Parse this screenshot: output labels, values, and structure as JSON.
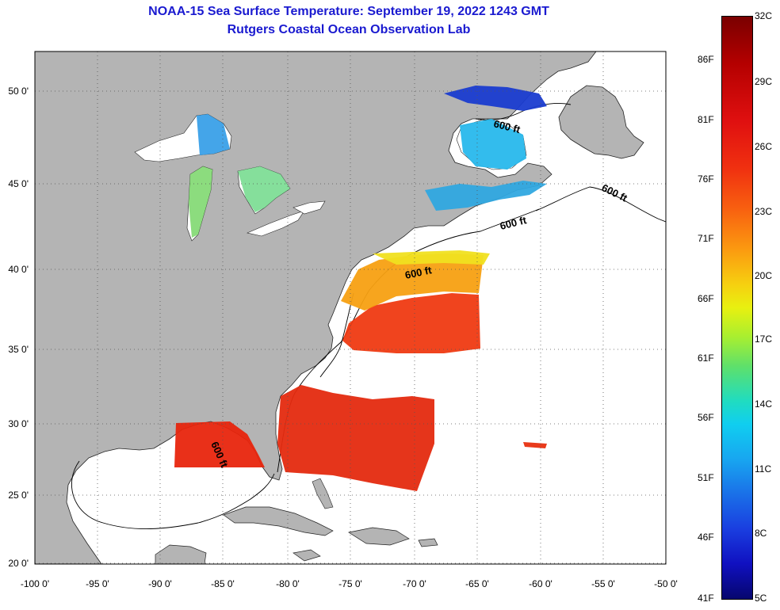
{
  "title": "NOAA-15 Sea Surface Temperature:  September 19, 2022 1243 GMT",
  "subtitle": "Rutgers Coastal Ocean Observation Lab",
  "lat_ticks": [
    "50 0'",
    "45 0'",
    "40 0'",
    "35 0'",
    "30 0'",
    "25 0'",
    "20 0'"
  ],
  "lon_ticks": [
    "-100 0'",
    "-95 0'",
    "-90 0'",
    "-85 0'",
    "-80 0'",
    "-75 0'",
    "-70 0'",
    "-65 0'",
    "-60 0'",
    "-55 0'",
    "-50 0'"
  ],
  "colorbar": {
    "celsius": [
      "32C",
      "29C",
      "26C",
      "23C",
      "20C",
      "17C",
      "14C",
      "11C",
      "8C",
      "5C"
    ],
    "fahrenheit": [
      "86F",
      "81F",
      "76F",
      "71F",
      "66F",
      "61F",
      "56F",
      "51F",
      "46F",
      "41F"
    ]
  },
  "contour_labels": [
    "600 ft",
    "600 ft",
    "600 ft",
    "600 ft",
    "600 ft"
  ],
  "colors": {
    "land": "#b4b4b4",
    "water": "#ffffff",
    "title": "#1a1ad0"
  }
}
